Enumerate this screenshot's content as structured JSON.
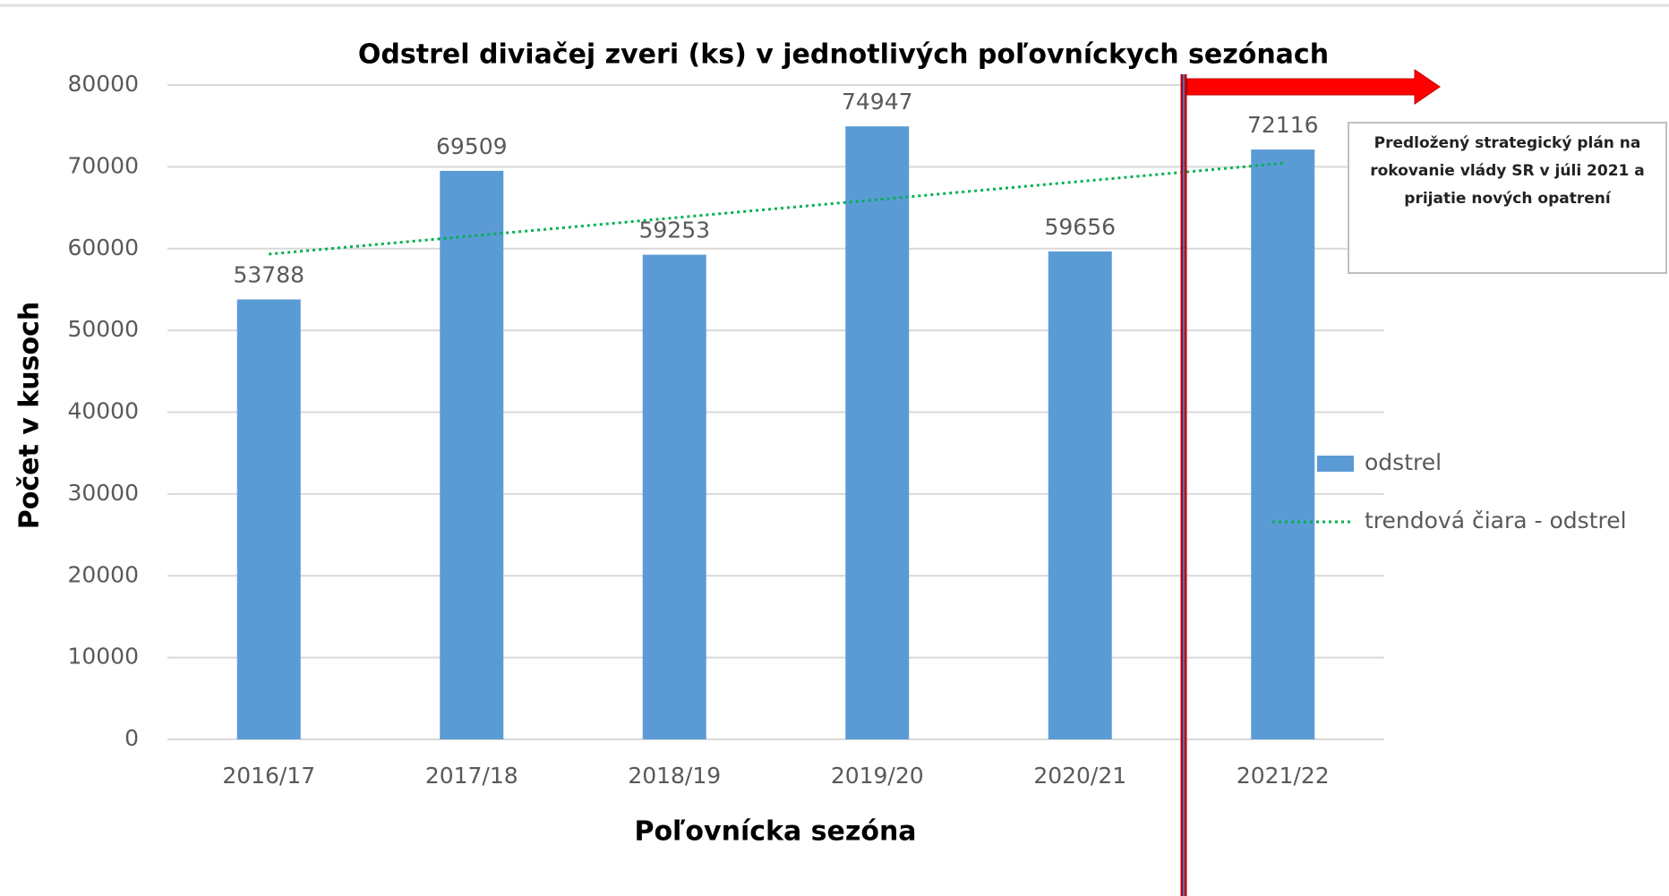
{
  "chart_data": {
    "type": "bar",
    "title": "Odstrel diviačej zveri (ks) v jednotlivých poľovníckych sezónach",
    "x_label": "Poľovnícka sezóna",
    "y_label": "Počet v kusoch",
    "categories": [
      "2016/17",
      "2017/18",
      "2018/19",
      "2019/20",
      "2020/21",
      "2021/22"
    ],
    "series": [
      {
        "name": "odstrel",
        "type": "bar",
        "color": "#5b9bd5",
        "values": [
          53788,
          69509,
          59253,
          74947,
          59656,
          72116
        ]
      },
      {
        "name": "trendová čiara - odstrel",
        "type": "line",
        "style": "dotted",
        "color": "#00b050",
        "values": [
          59323,
          61545,
          63767,
          65989,
          68211,
          70433
        ]
      }
    ],
    "ylim": [
      0,
      80000
    ],
    "yticks": [
      0,
      10000,
      20000,
      30000,
      40000,
      50000,
      60000,
      70000,
      80000
    ],
    "grid": true,
    "legend": "right",
    "annotation": "Predložený strategický plán na rokovanie vlády SR v júli 2021 a prijatie nových opatrení"
  }
}
